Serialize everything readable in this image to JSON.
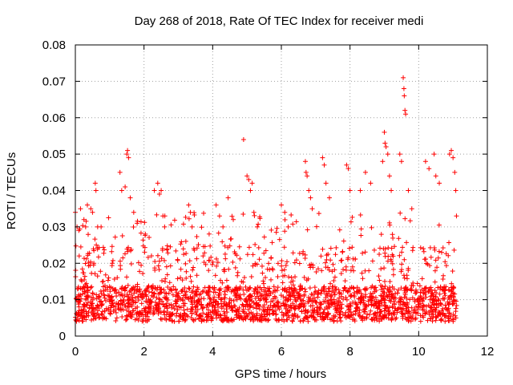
{
  "chart_data": {
    "type": "scatter",
    "title": "Day 268 of 2018, Rate Of TEC Index for receiver medi",
    "xlabel": "GPS time / hours",
    "ylabel": "ROTI / TECUs",
    "xlim": [
      0,
      12
    ],
    "ylim": [
      0,
      0.08
    ],
    "xticks": [
      "0",
      "2",
      "4",
      "6",
      "8",
      "10",
      "12"
    ],
    "yticks": [
      "0",
      "0.01",
      "0.02",
      "0.03",
      "0.04",
      "0.05",
      "0.06",
      "0.07",
      "0.08"
    ],
    "grid": true,
    "marker": "+",
    "color": "#ff0000",
    "time_span_hours": [
      0,
      11.12
    ],
    "typical_range": [
      0.004,
      0.02
    ],
    "series": [
      {
        "name": "ROTI",
        "points": [
          [
            0.0,
            0.034
          ],
          [
            0.05,
            0.03
          ],
          [
            0.1,
            0.029
          ],
          [
            0.15,
            0.035
          ],
          [
            0.25,
            0.032
          ],
          [
            0.3,
            0.03
          ],
          [
            0.35,
            0.036
          ],
          [
            0.45,
            0.035
          ],
          [
            0.5,
            0.034
          ],
          [
            0.58,
            0.042
          ],
          [
            0.6,
            0.04
          ],
          [
            0.65,
            0.03
          ],
          [
            0.75,
            0.03
          ],
          [
            1.3,
            0.045
          ],
          [
            1.35,
            0.04
          ],
          [
            1.45,
            0.041
          ],
          [
            1.5,
            0.05
          ],
          [
            1.52,
            0.051
          ],
          [
            1.55,
            0.049
          ],
          [
            1.6,
            0.038
          ],
          [
            1.7,
            0.034
          ],
          [
            1.8,
            0.031
          ],
          [
            2.3,
            0.04
          ],
          [
            2.4,
            0.042
          ],
          [
            2.45,
            0.039
          ],
          [
            2.5,
            0.04
          ],
          [
            2.55,
            0.033
          ],
          [
            2.6,
            0.03
          ],
          [
            3.3,
            0.036
          ],
          [
            3.35,
            0.034
          ],
          [
            3.4,
            0.03
          ],
          [
            4.1,
            0.036
          ],
          [
            4.2,
            0.033
          ],
          [
            4.3,
            0.03
          ],
          [
            4.45,
            0.038
          ],
          [
            4.6,
            0.032
          ],
          [
            4.9,
            0.054
          ],
          [
            5.0,
            0.044
          ],
          [
            5.05,
            0.043
          ],
          [
            5.1,
            0.04
          ],
          [
            5.15,
            0.042
          ],
          [
            5.2,
            0.034
          ],
          [
            5.3,
            0.03
          ],
          [
            6.0,
            0.036
          ],
          [
            6.1,
            0.034
          ],
          [
            6.2,
            0.03
          ],
          [
            6.7,
            0.048
          ],
          [
            6.72,
            0.045
          ],
          [
            6.75,
            0.044
          ],
          [
            6.8,
            0.04
          ],
          [
            6.85,
            0.038
          ],
          [
            6.9,
            0.035
          ],
          [
            7.2,
            0.049
          ],
          [
            7.25,
            0.047
          ],
          [
            7.3,
            0.042
          ],
          [
            7.4,
            0.038
          ],
          [
            7.9,
            0.047
          ],
          [
            7.95,
            0.046
          ],
          [
            8.0,
            0.04
          ],
          [
            8.3,
            0.04
          ],
          [
            8.45,
            0.045
          ],
          [
            8.6,
            0.042
          ],
          [
            8.95,
            0.048
          ],
          [
            9.0,
            0.056
          ],
          [
            9.02,
            0.053
          ],
          [
            9.05,
            0.052
          ],
          [
            9.1,
            0.05
          ],
          [
            9.15,
            0.044
          ],
          [
            9.2,
            0.04
          ],
          [
            9.45,
            0.05
          ],
          [
            9.5,
            0.048
          ],
          [
            9.55,
            0.071
          ],
          [
            9.57,
            0.068
          ],
          [
            9.58,
            0.066
          ],
          [
            9.6,
            0.062
          ],
          [
            9.62,
            0.061
          ],
          [
            9.7,
            0.04
          ],
          [
            9.8,
            0.035
          ],
          [
            10.2,
            0.048
          ],
          [
            10.3,
            0.046
          ],
          [
            10.45,
            0.05
          ],
          [
            10.5,
            0.044
          ],
          [
            10.6,
            0.042
          ],
          [
            10.9,
            0.05
          ],
          [
            10.95,
            0.051
          ],
          [
            11.0,
            0.049
          ],
          [
            11.05,
            0.045
          ],
          [
            11.08,
            0.04
          ],
          [
            11.1,
            0.033
          ]
        ]
      }
    ]
  }
}
